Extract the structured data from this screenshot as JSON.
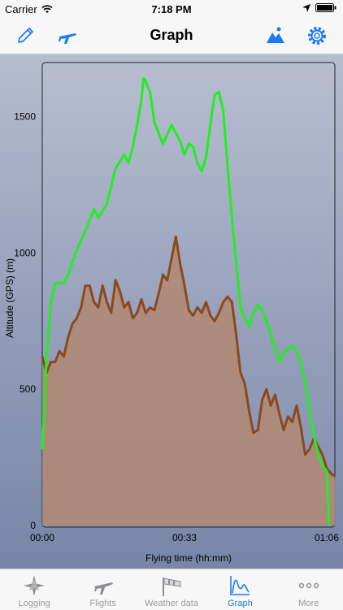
{
  "status": {
    "carrier": "Carrier",
    "time": "7:18 PM"
  },
  "navbar": {
    "title": "Graph",
    "left_icons": [
      "pencil-icon",
      "airplane-icon"
    ],
    "right_icons": [
      "mountain-icon",
      "gear-icon"
    ],
    "accent": "#1a7cf4"
  },
  "chart_data": {
    "type": "area",
    "xlabel": "Flying time (hh:mm)",
    "ylabel": "Altitude (GPS) (m)",
    "x_ticks": [
      "00:00",
      "00:33",
      "01:06"
    ],
    "y_ticks": [
      0,
      500,
      1000,
      1500
    ],
    "ylim": [
      0,
      1500
    ],
    "grid": false,
    "series": [
      {
        "kind": "line",
        "color": "#22ee22",
        "points": [
          [
            0,
            280
          ],
          [
            1,
            620
          ],
          [
            2,
            820
          ],
          [
            3,
            890
          ],
          [
            5,
            890
          ],
          [
            6,
            920
          ],
          [
            8,
            1010
          ],
          [
            10,
            1080
          ],
          [
            12,
            1160
          ],
          [
            13,
            1130
          ],
          [
            15,
            1180
          ],
          [
            17,
            1310
          ],
          [
            19,
            1360
          ],
          [
            20,
            1330
          ],
          [
            21,
            1390
          ],
          [
            22,
            1470
          ],
          [
            23,
            1560
          ],
          [
            23.5,
            1640
          ],
          [
            24,
            1630
          ],
          [
            25,
            1590
          ],
          [
            26,
            1480
          ],
          [
            27,
            1440
          ],
          [
            28,
            1400
          ],
          [
            30,
            1470
          ],
          [
            31,
            1440
          ],
          [
            32,
            1410
          ],
          [
            33,
            1360
          ],
          [
            34,
            1400
          ],
          [
            35,
            1390
          ],
          [
            36,
            1330
          ],
          [
            37,
            1300
          ],
          [
            38,
            1350
          ],
          [
            39,
            1470
          ],
          [
            40,
            1580
          ],
          [
            41,
            1590
          ],
          [
            42,
            1520
          ],
          [
            43,
            1320
          ],
          [
            44,
            1130
          ],
          [
            45,
            960
          ],
          [
            46,
            800
          ],
          [
            47,
            760
          ],
          [
            48,
            730
          ],
          [
            49,
            780
          ],
          [
            50,
            810
          ],
          [
            51,
            790
          ],
          [
            52,
            750
          ],
          [
            53,
            700
          ],
          [
            54,
            650
          ],
          [
            55,
            600
          ],
          [
            56,
            630
          ],
          [
            57,
            650
          ],
          [
            58,
            660
          ],
          [
            59,
            640
          ],
          [
            60,
            600
          ],
          [
            61,
            520
          ],
          [
            62,
            420
          ],
          [
            63,
            330
          ],
          [
            64,
            260
          ],
          [
            65,
            220
          ],
          [
            66,
            200
          ],
          [
            66.5,
            0
          ]
        ]
      },
      {
        "kind": "area",
        "color": "#8a4a1f",
        "points": [
          [
            0,
            620
          ],
          [
            1,
            560
          ],
          [
            2,
            600
          ],
          [
            3,
            600
          ],
          [
            4,
            640
          ],
          [
            5,
            620
          ],
          [
            6,
            690
          ],
          [
            7,
            740
          ],
          [
            8,
            760
          ],
          [
            9,
            800
          ],
          [
            10,
            880
          ],
          [
            11,
            880
          ],
          [
            12,
            820
          ],
          [
            13,
            800
          ],
          [
            14,
            880
          ],
          [
            15,
            820
          ],
          [
            16,
            780
          ],
          [
            17,
            900
          ],
          [
            18,
            860
          ],
          [
            19,
            800
          ],
          [
            20,
            820
          ],
          [
            21,
            760
          ],
          [
            22,
            780
          ],
          [
            23,
            830
          ],
          [
            24,
            780
          ],
          [
            25,
            800
          ],
          [
            26,
            790
          ],
          [
            27,
            850
          ],
          [
            28,
            920
          ],
          [
            29,
            900
          ],
          [
            30,
            980
          ],
          [
            31,
            1060
          ],
          [
            32,
            960
          ],
          [
            33,
            880
          ],
          [
            34,
            790
          ],
          [
            35,
            770
          ],
          [
            36,
            800
          ],
          [
            37,
            780
          ],
          [
            38,
            820
          ],
          [
            39,
            770
          ],
          [
            40,
            750
          ],
          [
            41,
            780
          ],
          [
            42,
            820
          ],
          [
            43,
            840
          ],
          [
            44,
            820
          ],
          [
            45,
            700
          ],
          [
            46,
            560
          ],
          [
            47,
            520
          ],
          [
            48,
            420
          ],
          [
            49,
            340
          ],
          [
            50,
            350
          ],
          [
            51,
            460
          ],
          [
            52,
            500
          ],
          [
            53,
            440
          ],
          [
            54,
            480
          ],
          [
            55,
            410
          ],
          [
            56,
            350
          ],
          [
            57,
            400
          ],
          [
            58,
            380
          ],
          [
            59,
            440
          ],
          [
            60,
            360
          ],
          [
            61,
            260
          ],
          [
            62,
            280
          ],
          [
            63,
            320
          ],
          [
            64,
            290
          ],
          [
            65,
            260
          ],
          [
            66,
            210
          ],
          [
            67,
            190
          ],
          [
            68,
            180
          ]
        ]
      }
    ]
  },
  "tabs": [
    {
      "label": "Logging",
      "icon": "compass-rose-icon"
    },
    {
      "label": "Flights",
      "icon": "airplane-icon"
    },
    {
      "label": "Weather data",
      "icon": "windsock-icon"
    },
    {
      "label": "Graph",
      "icon": "graph-icon",
      "active": true
    },
    {
      "label": "More",
      "icon": "more-dots-icon"
    }
  ]
}
